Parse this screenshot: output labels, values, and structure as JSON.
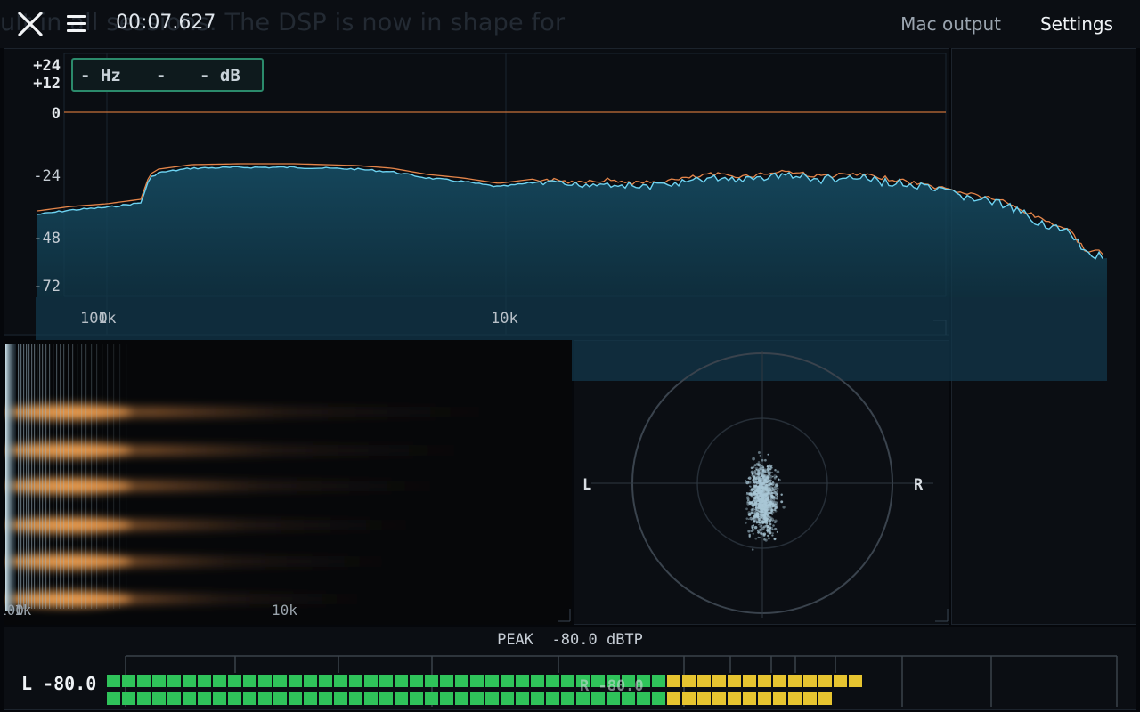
{
  "top_bar": {
    "background_caption": "ult in all sessions. The DSP is now in shape for",
    "timecode": "00:07.627",
    "output_device": "Mac output",
    "settings_label": "Settings",
    "icons": [
      "close-icon",
      "menu-icon"
    ]
  },
  "spectrum": {
    "readout": {
      "hz": "- Hz",
      "sep": "-",
      "db": "- dB"
    },
    "y_ticks": [
      "+24",
      "+12",
      "0",
      "-24",
      "-48",
      "-72"
    ],
    "x_ticks": [
      "100",
      "1k",
      "10k"
    ],
    "reference_line_db": 0,
    "colors": {
      "fill": "#134257",
      "average_line": "#6dd3f2",
      "peak_line": "#e4854a",
      "grid": "#1b2530"
    }
  },
  "spectrogram": {
    "x_ticks": [
      "100",
      "1k",
      "10k"
    ],
    "harmonic_color": "#e8924a"
  },
  "vectorscope": {
    "left_label": "L",
    "right_label": "R"
  },
  "meter": {
    "peak_label": "PEAK",
    "peak_value": "-80.0",
    "peak_unit": "dBTP",
    "channel": "L",
    "channel_value": "-80.0",
    "overlay_text": "R -80.0",
    "colors": {
      "green": "#2fc35a",
      "yellow": "#e6c430"
    }
  }
}
